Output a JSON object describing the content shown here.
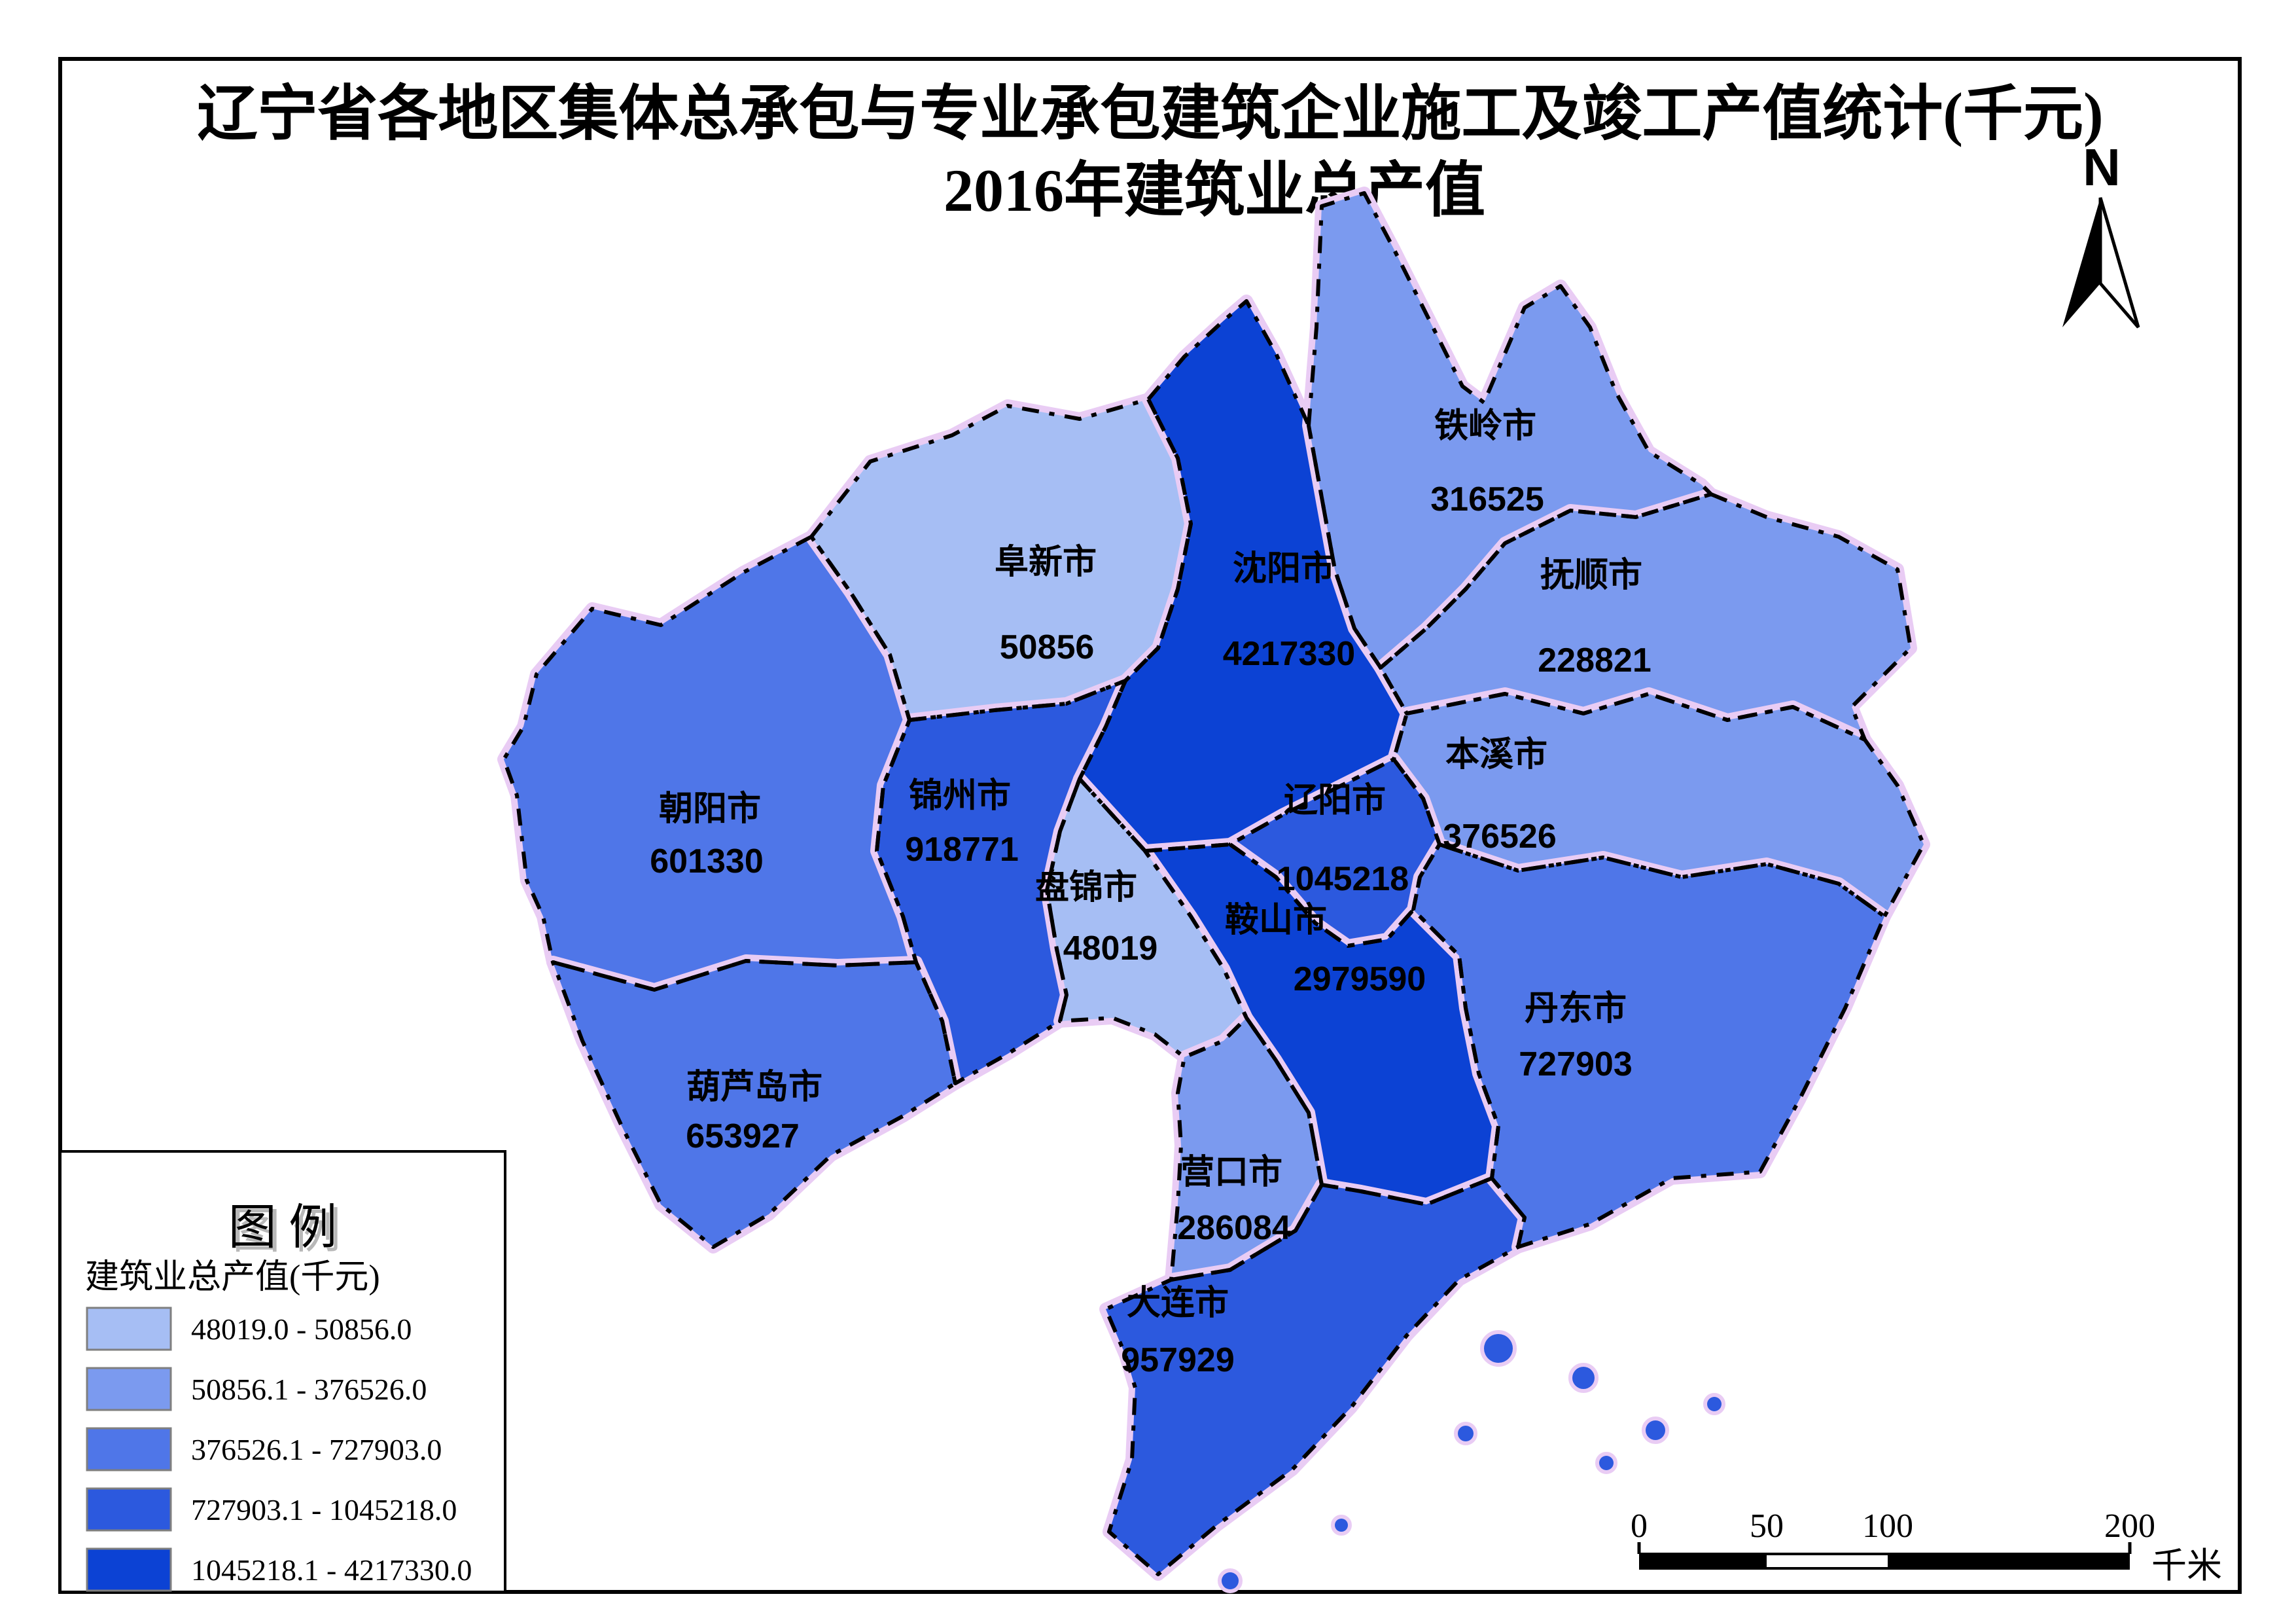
{
  "title": {
    "line1": "辽宁省各地区集体总承包与专业承包建筑企业施工及竣工产值统计(千元)",
    "line2": "2016年建筑业总产值"
  },
  "north_arrow": {
    "label": "N"
  },
  "legend": {
    "title": "图 例",
    "field_label": "建筑业总产值(千元)",
    "classes": [
      {
        "range": "48019.0 - 50856.0",
        "color": "#a6bef4"
      },
      {
        "range": "50856.1 - 376526.0",
        "color": "#7b9aef"
      },
      {
        "range": "376526.1 - 727903.0",
        "color": "#4f76e8"
      },
      {
        "range": "727903.1 - 1045218.0",
        "color": "#2c59de"
      },
      {
        "range": "1045218.1 - 4217330.0",
        "color": "#0c42d4"
      }
    ]
  },
  "scale_bar": {
    "ticks": [
      "0",
      "50",
      "100",
      "200"
    ],
    "unit": "千米"
  },
  "regions": [
    {
      "name": "朝阳市",
      "value": "601330",
      "color": "#4f76e8"
    },
    {
      "name": "阜新市",
      "value": "50856",
      "color": "#a6bef4"
    },
    {
      "name": "锦州市",
      "value": "918771",
      "color": "#2c59de"
    },
    {
      "name": "葫芦岛市",
      "value": "653927",
      "color": "#4f76e8"
    },
    {
      "name": "沈阳市",
      "value": "4217330",
      "color": "#0c42d4"
    },
    {
      "name": "铁岭市",
      "value": "316525",
      "color": "#7b9aef"
    },
    {
      "name": "抚顺市",
      "value": "228821",
      "color": "#7b9aef"
    },
    {
      "name": "本溪市",
      "value": "376526",
      "color": "#7b9aef"
    },
    {
      "name": "辽阳市",
      "value": "1045218",
      "color": "#2c59de"
    },
    {
      "name": "鞍山市",
      "value": "2979590",
      "color": "#0c42d4"
    },
    {
      "name": "盘锦市",
      "value": "48019",
      "color": "#a6bef4"
    },
    {
      "name": "营口市",
      "value": "286084",
      "color": "#7b9aef"
    },
    {
      "name": "大连市",
      "value": "957929",
      "color": "#2c59de"
    },
    {
      "name": "丹东市",
      "value": "727903",
      "color": "#4f76e8"
    }
  ]
}
